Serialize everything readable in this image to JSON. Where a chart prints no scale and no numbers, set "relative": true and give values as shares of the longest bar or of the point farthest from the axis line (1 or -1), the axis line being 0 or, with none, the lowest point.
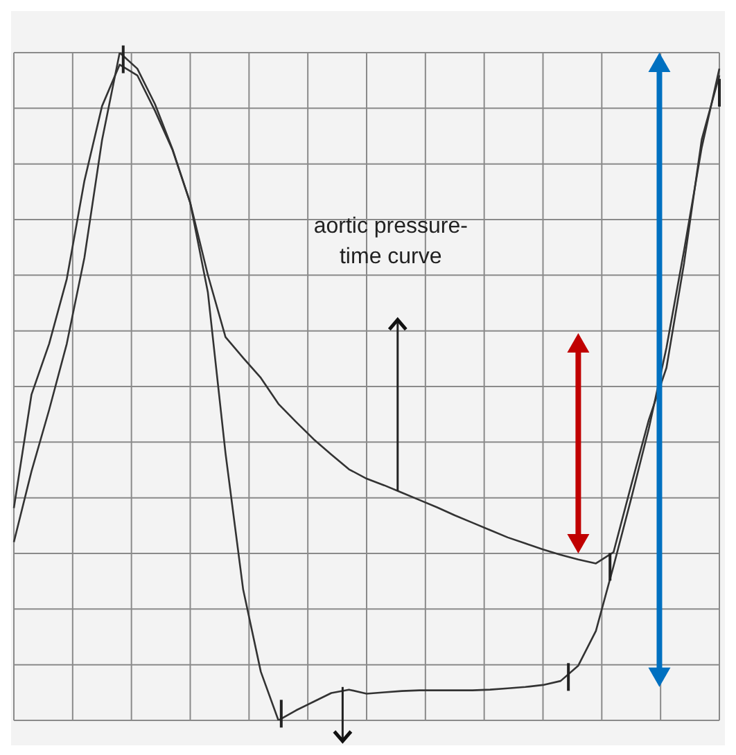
{
  "chart_data": {
    "type": "line",
    "relative": true,
    "grid": true,
    "marker": "none",
    "annotations": [
      "aortic pressure-time curve"
    ],
    "categories": [
      null,
      null,
      null,
      null,
      null,
      null,
      null,
      null,
      null,
      null,
      null,
      null,
      null,
      null,
      null,
      null,
      null,
      null,
      null,
      null,
      null,
      null,
      null,
      null,
      null,
      null,
      null,
      null,
      null,
      null,
      null,
      null,
      null,
      null,
      null,
      null,
      null,
      null,
      null,
      null,
      null
    ],
    "series": [
      {
        "color": "#333333",
        "values": [
          0.318,
          0.488,
          0.564,
          0.661,
          0.808,
          0.92,
          0.982,
          0.966,
          0.913,
          0.854,
          0.775,
          0.667,
          0.574,
          0.543,
          0.513,
          0.474,
          0.447,
          0.421,
          0.398,
          0.376,
          0.362,
          0.352,
          0.341,
          0.33,
          0.319,
          0.307,
          0.296,
          0.285,
          0.274,
          0.265,
          0.256,
          0.248,
          0.241,
          0.235,
          0.252,
          0.352,
          0.45,
          0.528,
          0.685,
          0.87,
          0.966
        ]
      },
      {
        "color": "#333333",
        "values": [
          0.267,
          0.373,
          0.465,
          0.564,
          0.693,
          0.869,
          1,
          0.976,
          0.923,
          0.855,
          0.775,
          0.641,
          0.4,
          0.196,
          0.073,
          0,
          0.015,
          0.028,
          0.041,
          0.046,
          0.04,
          0.042,
          0.044,
          0.045,
          0.045,
          0.045,
          0.045,
          0.046,
          0.048,
          0.05,
          0.053,
          0.059,
          0.082,
          0.134,
          0.231,
          0.332,
          0.437,
          0.558,
          0.704,
          0.858,
          0.976
        ]
      }
    ]
  }
}
